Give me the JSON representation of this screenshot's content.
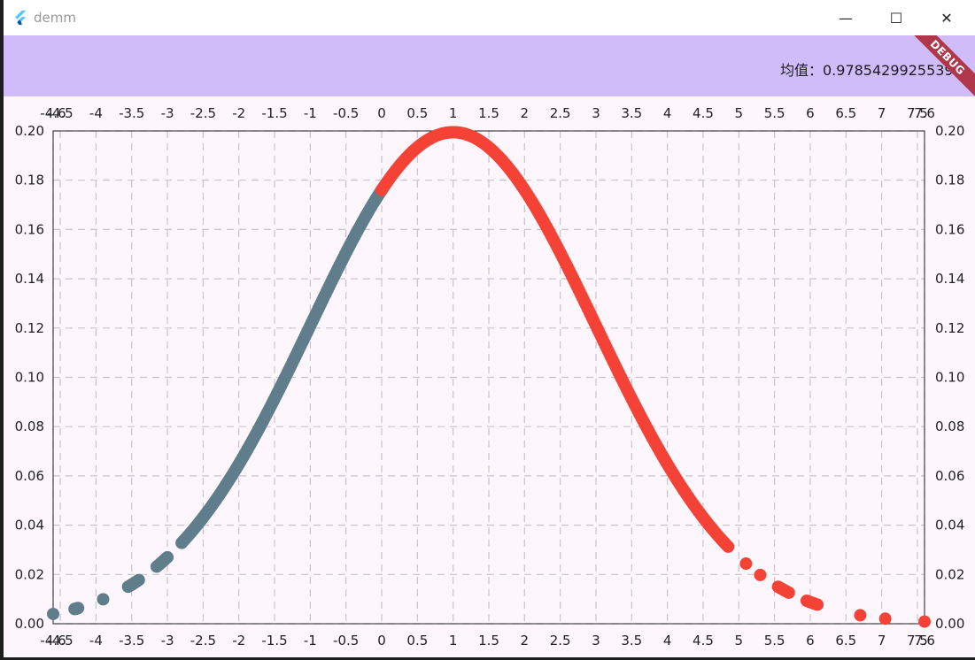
{
  "window": {
    "title": "demm",
    "minimize_glyph": "—",
    "maximize_glyph": "☐",
    "close_glyph": "✕"
  },
  "appbar": {
    "mean_text": "均值：0.97854299255394",
    "debug_banner": "DEBUG"
  },
  "colors": {
    "appbar_bg": "#cfbcf9",
    "plot_bg": "#fdf6fd",
    "point_low": "#607d8b",
    "point_high": "#f44336",
    "grid": "#c8c4cc"
  },
  "chart_data": {
    "type": "scatter",
    "title": "",
    "xlabel": "",
    "ylabel": "",
    "xlim": [
      -4.6,
      7.6
    ],
    "ylim": [
      0,
      0.2
    ],
    "x_ticks": [
      "-4.6",
      "-4.5",
      "-4",
      "-3.5",
      "-3",
      "-2.5",
      "-2",
      "-1.5",
      "-1",
      "-0.5",
      "0",
      "0.5",
      "1",
      "1.5",
      "2",
      "2.5",
      "3",
      "3.5",
      "4",
      "4.5",
      "5",
      "5.5",
      "6",
      "6.5",
      "7",
      "7.5",
      "7.6"
    ],
    "y_ticks": [
      "0.00",
      "0.02",
      "0.04",
      "0.06",
      "0.08",
      "0.10",
      "0.12",
      "0.14",
      "0.16",
      "0.18",
      "0.20"
    ],
    "grid": true,
    "mean": 1,
    "std": 2,
    "series": [
      {
        "color": "#607d8b",
        "x": [
          -4.6,
          -4.3,
          -4.25,
          -3.9,
          -3.55,
          -3.4,
          -3.15,
          -3.0,
          -2.8,
          -2.65,
          -2.5,
          -2.35,
          -2.2,
          -2.05,
          -1.9,
          -1.75,
          -1.6,
          -1.45,
          -1.3,
          -1.15,
          -1.0,
          -0.85,
          -0.7,
          -0.55,
          -0.4,
          -0.25,
          -0.1,
          0.0
        ]
      },
      {
        "color": "#f44336",
        "x": [
          0.0,
          0.15,
          0.3,
          0.45,
          0.6,
          0.75,
          0.9,
          1.05,
          1.2,
          1.35,
          1.5,
          1.65,
          1.8,
          1.95,
          2.1,
          2.25,
          2.4,
          2.55,
          2.7,
          2.85,
          3.0,
          3.15,
          3.3,
          3.45,
          3.6,
          3.75,
          3.9,
          4.05,
          4.2,
          4.35,
          4.5,
          4.65,
          4.85,
          5.1,
          5.3,
          5.55,
          5.7,
          5.95,
          6.1,
          6.7,
          7.05,
          7.6
        ]
      }
    ]
  }
}
